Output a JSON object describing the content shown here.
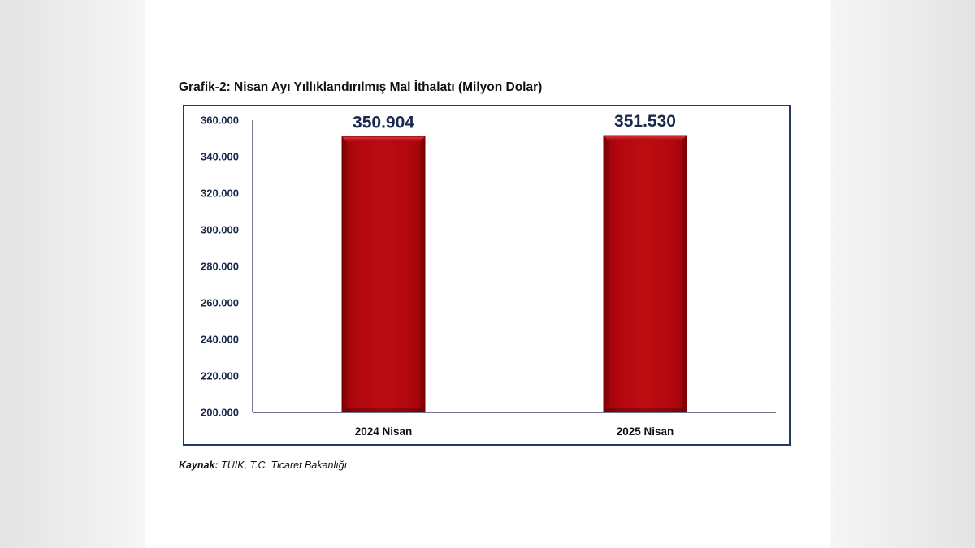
{
  "title": "Grafik-2: Nisan Ayı Yıllıklandırılmış Mal İthalatı (Milyon Dolar)",
  "source": {
    "label": "Kaynak:",
    "text": " TÜİK, T.C. Ticaret Bakanlığı"
  },
  "chart_data": {
    "type": "bar",
    "title": "Grafik-2: Nisan Ayı Yıllıklandırılmış Mal İthalatı (Milyon Dolar)",
    "categories": [
      "2024 Nisan",
      "2025 Nisan"
    ],
    "values": [
      350904,
      351530
    ],
    "value_labels": [
      "350.904",
      "351.530"
    ],
    "ylim": [
      200000,
      360000
    ],
    "yticks": [
      200000,
      220000,
      240000,
      260000,
      280000,
      300000,
      320000,
      340000,
      360000
    ],
    "ytick_labels": [
      "200.000",
      "220.000",
      "240.000",
      "260.000",
      "280.000",
      "300.000",
      "320.000",
      "340.000",
      "360.000"
    ],
    "xlabel": "",
    "ylabel": "",
    "grid": false,
    "legend": "none",
    "colors": {
      "bar": "#b3080c",
      "bar_edge": "#7a0005",
      "axis": "#17294d",
      "frame": "#1f3b63"
    }
  }
}
